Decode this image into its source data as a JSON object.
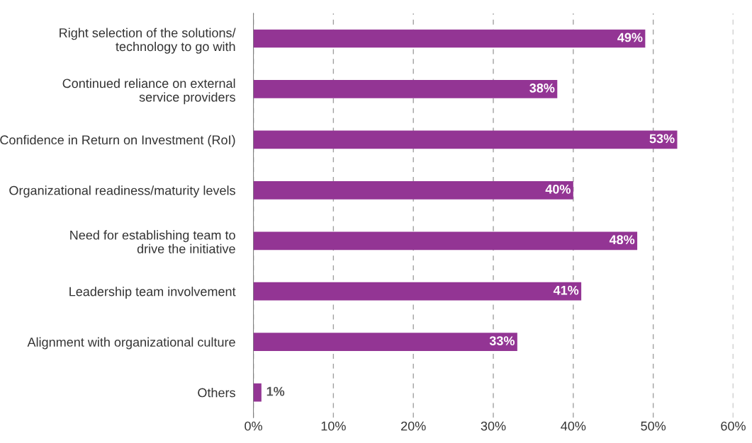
{
  "chart_data": {
    "type": "bar",
    "orientation": "horizontal",
    "categories": [
      "Right selection of the solutions/\ntechnology to go with",
      "Continued reliance on external\nservice providers",
      "Confidence in Return on Investment (RoI)",
      "Organizational readiness/maturity levels",
      "Need for establishing team to\ndrive the initiative",
      "Leadership team involvement",
      "Alignment with organizational culture",
      "Others"
    ],
    "values": [
      49,
      38,
      53,
      40,
      48,
      41,
      33,
      1
    ],
    "value_labels": [
      "49%",
      "38%",
      "53%",
      "40%",
      "48%",
      "41%",
      "33%",
      "1%"
    ],
    "color": "#933594",
    "xlim": [
      0,
      60
    ],
    "xticks": [
      {
        "value": 0,
        "label": "0%"
      },
      {
        "value": 10,
        "label": "10%"
      },
      {
        "value": 20,
        "label": "20%"
      },
      {
        "value": 30,
        "label": "30%"
      },
      {
        "value": 40,
        "label": "40%"
      },
      {
        "value": 50,
        "label": "50%"
      },
      {
        "value": 60,
        "label": "60%"
      }
    ],
    "grid": "x",
    "legend": false
  }
}
